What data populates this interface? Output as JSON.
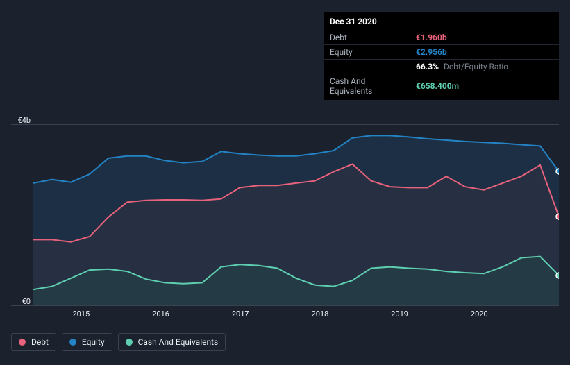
{
  "chart": {
    "type": "area",
    "background_color": "#1b222d",
    "plot_background": "#1b222d",
    "grid_color": "#3a4150",
    "text_color": "#eceff4",
    "y_axis": {
      "min": 0,
      "max": 4.6,
      "ticks": [
        {
          "value": 0,
          "label": "€0"
        },
        {
          "value": 4,
          "label": "€4b"
        }
      ]
    },
    "x_axis": {
      "labels": [
        "2015",
        "2016",
        "2017",
        "2018",
        "2019",
        "2020"
      ]
    },
    "series": [
      {
        "name": "Debt",
        "color": "#e8627c",
        "fill": "#2d3142",
        "fill_opacity": 0.55,
        "line_width": 2,
        "data": [
          1.45,
          1.45,
          1.4,
          1.52,
          1.95,
          2.28,
          2.32,
          2.33,
          2.33,
          2.32,
          2.35,
          2.6,
          2.65,
          2.65,
          2.7,
          2.75,
          2.95,
          3.12,
          2.75,
          2.62,
          2.6,
          2.6,
          2.85,
          2.62,
          2.55,
          2.7,
          2.85,
          3.1,
          1.96
        ]
      },
      {
        "name": "Equity",
        "color": "#2383c4",
        "fill": "#1f3a57",
        "fill_opacity": 0.55,
        "line_width": 2,
        "data": [
          2.7,
          2.78,
          2.72,
          2.9,
          3.25,
          3.3,
          3.3,
          3.2,
          3.15,
          3.18,
          3.4,
          3.35,
          3.32,
          3.3,
          3.3,
          3.35,
          3.42,
          3.7,
          3.75,
          3.75,
          3.72,
          3.68,
          3.65,
          3.62,
          3.6,
          3.58,
          3.55,
          3.52,
          2.96
        ]
      },
      {
        "name": "Cash And Equivalents",
        "color": "#5ecfb1",
        "fill": "#23454a",
        "fill_opacity": 0.55,
        "line_width": 2,
        "data": [
          0.35,
          0.42,
          0.6,
          0.78,
          0.8,
          0.75,
          0.58,
          0.5,
          0.48,
          0.5,
          0.85,
          0.9,
          0.88,
          0.82,
          0.6,
          0.45,
          0.42,
          0.55,
          0.82,
          0.85,
          0.82,
          0.8,
          0.75,
          0.72,
          0.7,
          0.85,
          1.05,
          1.08,
          0.66
        ]
      }
    ],
    "end_markers": true
  },
  "tooltip": {
    "date": "Dec 31 2020",
    "rows": [
      {
        "label": "Debt",
        "value": "€1.960b",
        "color": "#e8627c"
      },
      {
        "label": "Equity",
        "value": "€2.956b",
        "color": "#2383c4"
      },
      {
        "label": "",
        "value": "66.3%",
        "extra": "Debt/Equity Ratio",
        "color": "#ffffff"
      },
      {
        "label": "Cash And Equivalents",
        "value": "€658.400m",
        "color": "#5ecfb1"
      }
    ]
  },
  "legend": {
    "items": [
      {
        "label": "Debt",
        "color": "#e8627c"
      },
      {
        "label": "Equity",
        "color": "#2383c4"
      },
      {
        "label": "Cash And Equivalents",
        "color": "#5ecfb1"
      }
    ]
  }
}
